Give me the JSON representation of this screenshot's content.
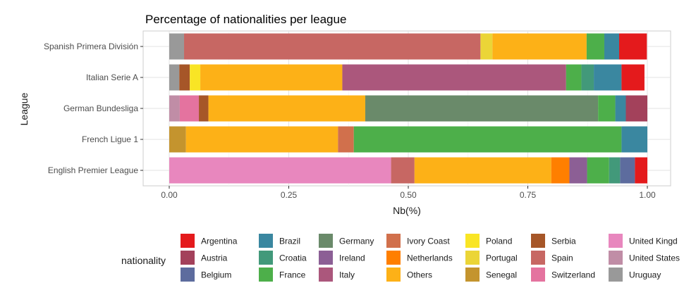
{
  "chart_data": {
    "type": "bar",
    "orientation": "horizontal",
    "stacked": true,
    "title": "Percentage of nationalities per league",
    "xlabel": "Nb(%)",
    "ylabel": "League",
    "xlim": [
      0,
      1
    ],
    "x_ticks": [
      "0.00",
      "0.25",
      "0.50",
      "0.75",
      "1.00"
    ],
    "grid": true,
    "legend_title": "nationality",
    "legend_position": "bottom",
    "categories": [
      "English Premier League",
      "French Ligue 1",
      "German Bundesliga",
      "Italian Serie A",
      "Spanish Primera División"
    ],
    "series": [
      {
        "name": "Argentina",
        "color": "#E41A1C",
        "values": [
          0.026,
          0,
          0,
          0.048,
          0.058
        ]
      },
      {
        "name": "Austria",
        "color": "#A3415B",
        "values": [
          0,
          0,
          0.045,
          0,
          0
        ]
      },
      {
        "name": "Belgium",
        "color": "#5D6C9E",
        "values": [
          0.031,
          0,
          0,
          0,
          0
        ]
      },
      {
        "name": "Brazil",
        "color": "#3A87A0",
        "values": [
          0,
          0.054,
          0.022,
          0.058,
          0.031
        ]
      },
      {
        "name": "Croatia",
        "color": "#42997A",
        "values": [
          0.023,
          0,
          0,
          0.026,
          0
        ]
      },
      {
        "name": "France",
        "color": "#4DAF4A",
        "values": [
          0.046,
          0.56,
          0.036,
          0.032,
          0.037
        ]
      },
      {
        "name": "Germany",
        "color": "#6A8A6A",
        "values": [
          0,
          0,
          0.487,
          0,
          0
        ]
      },
      {
        "name": "Ireland",
        "color": "#8C5F95",
        "values": [
          0.037,
          0,
          0,
          0,
          0
        ]
      },
      {
        "name": "Italy",
        "color": "#AB577C",
        "values": [
          0,
          0,
          0,
          0.468,
          0
        ]
      },
      {
        "name": "Ivory Coast",
        "color": "#D1704C",
        "values": [
          0,
          0.033,
          0,
          0,
          0
        ]
      },
      {
        "name": "Netherlands",
        "color": "#FF7F00",
        "values": [
          0.038,
          0,
          0,
          0,
          0
        ]
      },
      {
        "name": "Others",
        "color": "#FDB117",
        "values": [
          0.286,
          0.318,
          0.328,
          0.297,
          0.197
        ]
      },
      {
        "name": "Poland",
        "color": "#F9E525",
        "values": [
          0,
          0,
          0,
          0.022,
          0
        ]
      },
      {
        "name": "Portugal",
        "color": "#EBD537",
        "values": [
          0,
          0,
          0,
          0,
          0.025
        ]
      },
      {
        "name": "Senegal",
        "color": "#C4942E",
        "values": [
          0,
          0.035,
          0,
          0,
          0
        ]
      },
      {
        "name": "Serbia",
        "color": "#A65628",
        "values": [
          0,
          0,
          0.02,
          0.022,
          0
        ]
      },
      {
        "name": "Spain",
        "color": "#C76763",
        "values": [
          0.049,
          0,
          0,
          0,
          0.62
        ]
      },
      {
        "name": "Switzerland",
        "color": "#E4739F",
        "values": [
          0,
          0,
          0.04,
          0,
          0
        ]
      },
      {
        "name": "United Kingdom",
        "color": "#E887BE",
        "values": [
          0.464,
          0,
          0,
          0,
          0
        ]
      },
      {
        "name": "United States",
        "color": "#C08DA6",
        "values": [
          0,
          0,
          0.022,
          0,
          0
        ]
      },
      {
        "name": "Uruguay",
        "color": "#999999",
        "values": [
          0,
          0,
          0,
          0.021,
          0.031
        ]
      }
    ],
    "legend_display": [
      "Argentina",
      "Brazil",
      "Germany",
      "Ivory Coast",
      "Poland",
      "Serbia",
      "United Kingd",
      "Austria",
      "Croatia",
      "Ireland",
      "Netherlands",
      "Portugal",
      "Spain",
      "United States",
      "Belgium",
      "France",
      "Italy",
      "Others",
      "Senegal",
      "Switzerland",
      "Uruguay"
    ]
  }
}
